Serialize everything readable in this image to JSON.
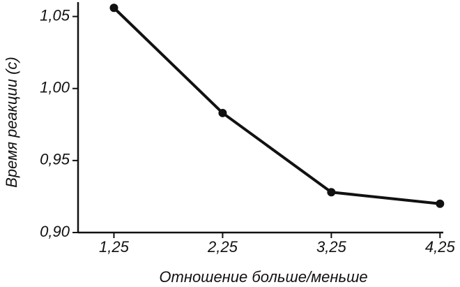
{
  "chart_data": {
    "type": "line",
    "x_label": "Отношение больше/меньше",
    "y_label": "Время реакции (с)",
    "x": [
      1.25,
      2.25,
      3.25,
      4.25
    ],
    "series": [
      {
        "color": "#111111",
        "values": [
          1.056,
          0.983,
          0.928,
          0.92
        ]
      }
    ],
    "xlim": [
      0.92,
      4.28
    ],
    "xticks": [
      {
        "value": 1.25,
        "label": "1,25"
      },
      {
        "value": 2.25,
        "label": "2,25"
      },
      {
        "value": 3.25,
        "label": "3,25"
      },
      {
        "value": 4.25,
        "label": "4,25"
      }
    ],
    "ylim": [
      0.9,
      1.06
    ],
    "yticks": [
      {
        "value": 0.9,
        "label": "0,90"
      },
      {
        "value": 0.95,
        "label": "0,95"
      },
      {
        "value": 1.0,
        "label": "1,00"
      },
      {
        "value": 1.05,
        "label": "1,05"
      }
    ],
    "grid": false
  }
}
